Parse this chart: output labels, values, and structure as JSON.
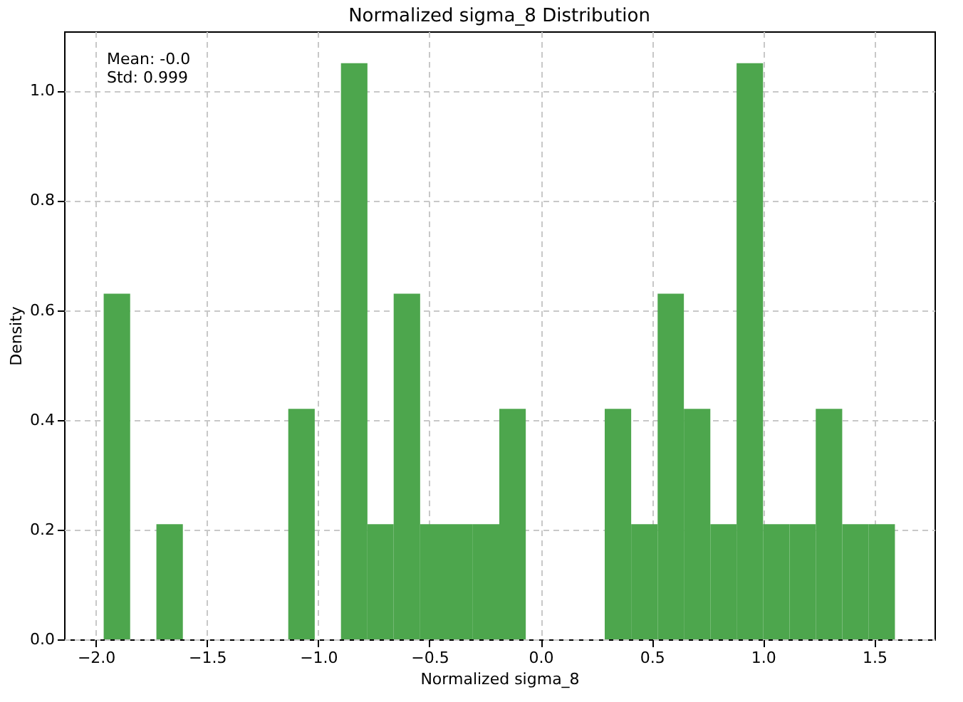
{
  "chart_data": {
    "type": "histogram",
    "title": "Normalized sigma_8 Distribution",
    "xlabel": "Normalized sigma_8",
    "ylabel": "Density",
    "bins": [
      -1.965,
      -1.846,
      -1.728,
      -1.609,
      -1.491,
      -1.372,
      -1.253,
      -1.135,
      -1.016,
      -0.898,
      -0.779,
      -0.661,
      -0.542,
      -0.423,
      -0.305,
      -0.186,
      -0.067,
      0.051,
      0.17,
      0.288,
      0.407,
      0.526,
      0.644,
      0.763,
      0.881,
      1.0,
      1.119,
      1.237,
      1.356,
      1.474,
      1.593
    ],
    "values": [
      0.63,
      0,
      0.21,
      0,
      0,
      0,
      0,
      0.42,
      0,
      1.05,
      0.21,
      0.63,
      0.21,
      0.21,
      0.21,
      0.42,
      0,
      0,
      0,
      0.42,
      0.21,
      0.63,
      0.42,
      0.21,
      1.05,
      0.21,
      0.21,
      0.42,
      0.21,
      0.21
    ],
    "color": "#4da64d",
    "xlim": [
      -2.143,
      1.771
    ],
    "ylim": [
      0,
      1.108
    ],
    "xticks": [
      {
        "value": -2,
        "label": "−2.0"
      },
      {
        "value": -1.5,
        "label": "−1.5"
      },
      {
        "value": -1,
        "label": "−1.0"
      },
      {
        "value": -0.5,
        "label": "−0.5"
      },
      {
        "value": 0,
        "label": "0.0"
      },
      {
        "value": 0.5,
        "label": "0.5"
      },
      {
        "value": 1,
        "label": "1.0"
      },
      {
        "value": 1.5,
        "label": "1.5"
      }
    ],
    "yticks": [
      {
        "value": 0,
        "label": "0.0"
      },
      0.2,
      0.4,
      0.6,
      0.8,
      {
        "value": 1,
        "label": "1.0"
      }
    ],
    "grid": true,
    "annotations": [
      "Mean: -0.0\nStd: 0.999"
    ]
  }
}
